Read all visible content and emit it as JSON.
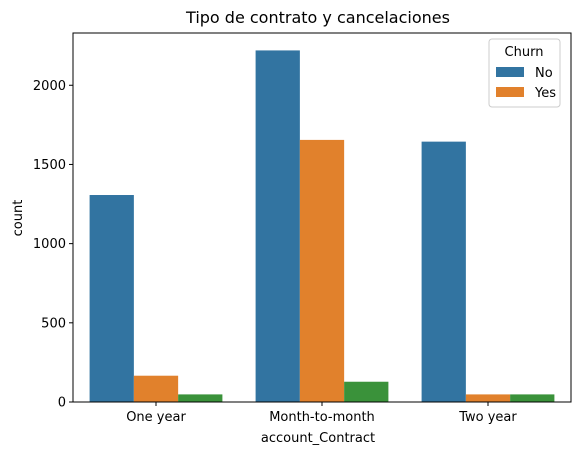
{
  "chart_data": {
    "type": "bar",
    "title": "Tipo de contrato y cancelaciones",
    "xlabel": "account_Contract",
    "ylabel": "count",
    "categories": [
      "One year",
      "Month-to-month",
      "Two year"
    ],
    "series": [
      {
        "name": "No",
        "values": [
          1307,
          2220,
          1644
        ],
        "color": "#3274a1"
      },
      {
        "name": "Yes",
        "values": [
          166,
          1655,
          48
        ],
        "color": "#e1812c"
      },
      {
        "values": [
          48,
          128,
          48
        ],
        "color": "#3a923a"
      }
    ],
    "ylim": [
      0,
      2330
    ],
    "yticks": [
      0,
      500,
      1000,
      1500,
      2000
    ],
    "legend": {
      "title": "Churn",
      "position": "top-right"
    },
    "grid": false
  }
}
